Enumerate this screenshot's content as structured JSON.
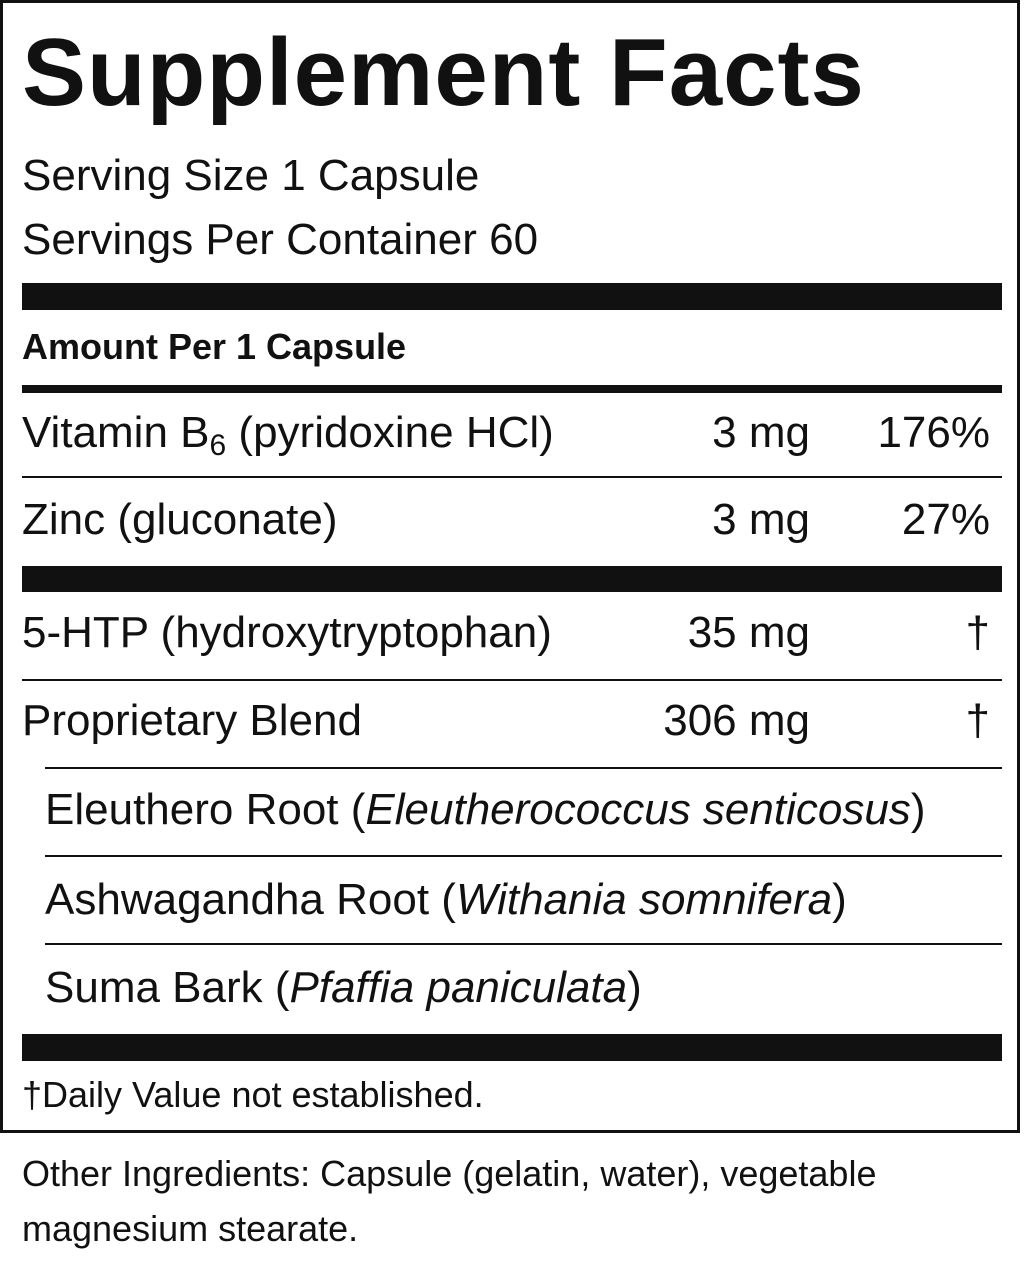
{
  "title": "Supplement Facts",
  "serving_size": "Serving Size 1 Capsule",
  "servings_per_container": "Servings Per Container 60",
  "amount_header": "Amount Per 1 Capsule",
  "vitamins": [
    {
      "name": "Vitamin B",
      "subscript": "6",
      "detail": " (pyridoxine HCl)",
      "amount": "3 mg",
      "dv": "176%"
    },
    {
      "name": "Zinc (gluconate)",
      "amount": "3 mg",
      "dv": "27%"
    }
  ],
  "others": [
    {
      "name": "5-HTP (hydroxytryptophan)",
      "amount": "35 mg",
      "dv": "†"
    },
    {
      "name": "Proprietary Blend",
      "amount": "306 mg",
      "dv": "†"
    }
  ],
  "blend": [
    {
      "name": "Eleuthero Root (",
      "latin": "Eleutherococcus senticosus",
      "close": ")"
    },
    {
      "name": "Ashwagandha Root (",
      "latin": "Withania somnifera",
      "close": ")"
    },
    {
      "name": "Suma Bark (",
      "latin": "Pfaffia paniculata",
      "close": ")"
    }
  ],
  "footnote": "†Daily Value not established.",
  "other_ingredients": "Other Ingredients: Capsule (gelatin, water), vegetable magnesium stearate."
}
